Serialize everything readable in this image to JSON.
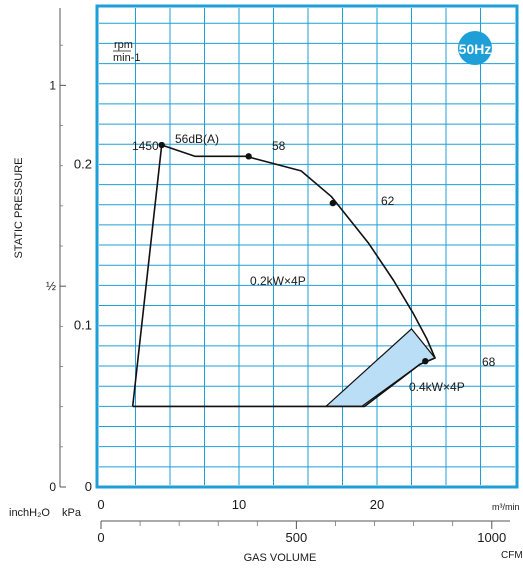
{
  "chart_data": {
    "type": "line",
    "badge": "50Hz",
    "speed_unit": {
      "line1": "rpm",
      "line2": "min-1"
    },
    "y_axis": {
      "title": "STATIC PRESSURE",
      "inner_unit": "kPa",
      "inner_range": [
        0,
        0.3
      ],
      "inner_ticks": [
        "0",
        "0.1",
        "0.2"
      ],
      "outer_unit": "inchH₂O",
      "outer_ticks": [
        "0",
        "½",
        "1"
      ]
    },
    "x_axis": {
      "title": "GAS VOLUME",
      "inner_unit": "m³/min",
      "inner_range": [
        0,
        25
      ],
      "inner_ticks": [
        "0",
        "10",
        "20"
      ],
      "outer_unit": "CFM",
      "outer_ticks": [
        "0",
        "500",
        "1000"
      ]
    },
    "grid": true,
    "series": [
      {
        "name": "0.2kW×4P",
        "envelope": [
          {
            "x": 2.3,
            "y": 0.05
          },
          {
            "x": 4.4,
            "y": 0.212
          },
          {
            "x": 6.8,
            "y": 0.205
          },
          {
            "x": 10.5,
            "y": 0.205
          },
          {
            "x": 14.5,
            "y": 0.196
          },
          {
            "x": 16.7,
            "y": 0.18
          },
          {
            "x": 19.4,
            "y": 0.151
          },
          {
            "x": 21.2,
            "y": 0.128
          },
          {
            "x": 22.6,
            "y": 0.108
          },
          {
            "x": 23.6,
            "y": 0.092
          },
          {
            "x": 24.2,
            "y": 0.08
          },
          {
            "x": 23.1,
            "y": 0.076
          },
          {
            "x": 19.1,
            "y": 0.05
          }
        ]
      },
      {
        "name": "0.4kW×4P",
        "region": [
          {
            "x": 16.3,
            "y": 0.05
          },
          {
            "x": 22.5,
            "y": 0.098
          },
          {
            "x": 24.2,
            "y": 0.08
          },
          {
            "x": 23.1,
            "y": 0.076
          },
          {
            "x": 18.9,
            "y": 0.05
          }
        ]
      }
    ],
    "annotations": [
      {
        "label": "1450",
        "x": 4.4,
        "y": 0.212
      },
      {
        "label": "56dB(A)",
        "x": 4.4,
        "y": 0.212
      },
      {
        "label": "58",
        "x": 10.7,
        "y": 0.205
      },
      {
        "label": "62",
        "x": 16.8,
        "y": 0.176
      },
      {
        "label": "68",
        "x": 23.5,
        "y": 0.078
      }
    ]
  }
}
